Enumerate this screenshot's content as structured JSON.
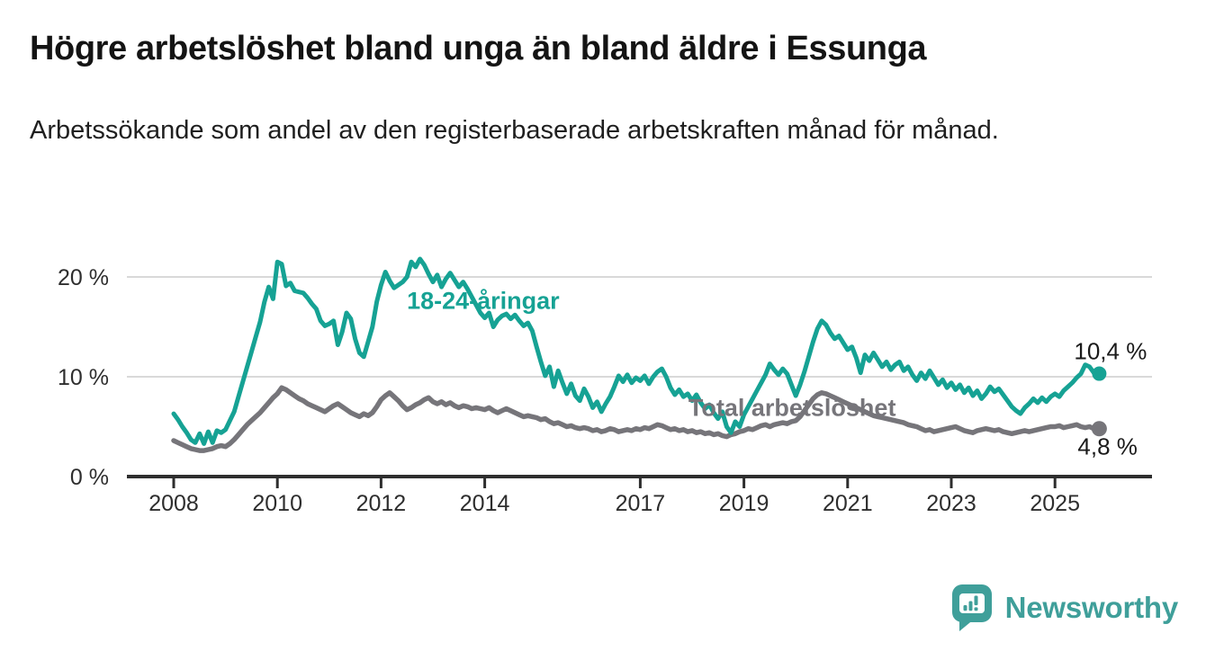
{
  "title": "Högre arbetslöshet bland unga än bland äldre i Essunga",
  "subtitle": "Arbetssökande som andel av den registerbaserade arbetskraften månad för månad.",
  "branding": {
    "logo_text": "Newsworthy",
    "logo_icon": "bar-chart-speech-bubble"
  },
  "colors": {
    "young": "#16a294",
    "total": "#76757a",
    "grid": "#d9d9d9",
    "axis": "#2e2e2e",
    "tick_text": "#2e2e2e",
    "end_label_text": "#1a1a1a",
    "brand": "#3f9f9a",
    "background": "#ffffff"
  },
  "chart_data": {
    "type": "line",
    "unit": "%",
    "x_start": {
      "year": 2008,
      "month": 1
    },
    "x_end": {
      "year": 2025,
      "month": 10
    },
    "points_per_year": 12,
    "ylim": [
      0,
      22.5
    ],
    "grid": true,
    "y_ticks": [
      {
        "label": "20 %",
        "value": 20
      },
      {
        "label": "10 %",
        "value": 10
      },
      {
        "label": "0 %",
        "value": 0
      }
    ],
    "x_ticks": [
      {
        "label": "2008",
        "year": 2008
      },
      {
        "label": "2010",
        "year": 2010
      },
      {
        "label": "2012",
        "year": 2012
      },
      {
        "label": "2014",
        "year": 2014
      },
      {
        "label": "2017",
        "year": 2017
      },
      {
        "label": "2019",
        "year": 2019
      },
      {
        "label": "2021",
        "year": 2021
      },
      {
        "label": "2023",
        "year": 2023
      },
      {
        "label": "2025",
        "year": 2025
      }
    ],
    "series": [
      {
        "name": "18-24-åringar",
        "color_key": "young",
        "end_label": "10,4 %",
        "end_label_position": "above",
        "end_value": 10.4,
        "values": [
          6.3,
          5.7,
          5.0,
          4.4,
          3.7,
          3.4,
          4.3,
          3.3,
          4.5,
          3.4,
          4.6,
          4.4,
          4.7,
          5.6,
          6.5,
          8.0,
          9.5,
          11.0,
          12.5,
          14.0,
          15.5,
          17.5,
          19.0,
          17.8,
          21.5,
          21.3,
          19.1,
          19.4,
          18.6,
          18.5,
          18.4,
          17.9,
          17.3,
          16.8,
          15.6,
          15.1,
          15.3,
          15.6,
          13.2,
          14.5,
          16.4,
          15.8,
          13.8,
          12.4,
          12.0,
          13.5,
          15.0,
          17.5,
          19.2,
          20.5,
          19.6,
          18.9,
          19.2,
          19.5,
          20.0,
          21.5,
          21.0,
          21.8,
          21.2,
          20.3,
          19.5,
          20.2,
          19.0,
          19.8,
          20.4,
          19.7,
          19.0,
          19.5,
          18.8,
          18.0,
          17.2,
          16.4,
          15.9,
          16.4,
          15.0,
          15.7,
          16.1,
          16.3,
          15.8,
          16.2,
          15.6,
          15.1,
          15.4,
          14.6,
          13.0,
          11.5,
          10.1,
          11.0,
          9.0,
          10.6,
          9.4,
          8.3,
          9.3,
          8.1,
          7.6,
          8.8,
          8.0,
          6.9,
          7.5,
          6.5,
          7.3,
          8.0,
          9.0,
          10.1,
          9.5,
          10.2,
          9.4,
          9.9,
          9.6,
          10.1,
          9.3,
          10.0,
          10.5,
          10.8,
          10.0,
          8.9,
          8.2,
          8.7,
          8.0,
          8.3,
          7.6,
          8.2,
          7.4,
          6.8,
          7.2,
          6.4,
          5.8,
          6.5,
          5.0,
          4.4,
          5.5,
          5.0,
          6.2,
          7.0,
          7.8,
          8.6,
          9.4,
          10.2,
          11.3,
          10.7,
          10.2,
          10.8,
          10.3,
          9.2,
          8.1,
          9.2,
          10.5,
          12.0,
          13.5,
          14.8,
          15.6,
          15.2,
          14.4,
          13.8,
          14.1,
          13.4,
          12.7,
          13.0,
          11.9,
          10.4,
          12.2,
          11.6,
          12.4,
          11.7,
          11.0,
          11.5,
          10.7,
          11.2,
          11.5,
          10.6,
          11.0,
          10.2,
          9.6,
          10.4,
          9.8,
          10.6,
          9.9,
          9.2,
          9.7,
          8.9,
          9.4,
          8.7,
          9.2,
          8.4,
          8.9,
          8.1,
          8.6,
          7.8,
          8.3,
          9.0,
          8.5,
          8.8,
          8.2,
          7.6,
          7.0,
          6.6,
          6.3,
          6.9,
          7.3,
          7.8,
          7.4,
          7.9,
          7.5,
          8.0,
          8.3,
          8.0,
          8.6,
          9.0,
          9.4,
          9.9,
          10.3,
          11.2,
          11.0,
          10.4
        ]
      },
      {
        "name": "Total arbetslöshet",
        "color_key": "total",
        "end_label": "4,8 %",
        "end_label_position": "below",
        "end_value": 4.8,
        "values": [
          3.6,
          3.4,
          3.2,
          3.0,
          2.8,
          2.7,
          2.6,
          2.6,
          2.7,
          2.8,
          3.0,
          3.1,
          3.0,
          3.3,
          3.7,
          4.2,
          4.7,
          5.2,
          5.6,
          6.0,
          6.4,
          6.9,
          7.4,
          7.9,
          8.3,
          8.9,
          8.7,
          8.4,
          8.1,
          7.8,
          7.6,
          7.3,
          7.1,
          6.9,
          6.7,
          6.5,
          6.8,
          7.1,
          7.3,
          7.0,
          6.7,
          6.4,
          6.2,
          6.0,
          6.3,
          6.1,
          6.4,
          7.0,
          7.7,
          8.1,
          8.4,
          8.0,
          7.6,
          7.1,
          6.7,
          6.9,
          7.2,
          7.4,
          7.7,
          7.9,
          7.5,
          7.3,
          7.5,
          7.2,
          7.4,
          7.1,
          6.9,
          7.1,
          7.0,
          6.8,
          6.9,
          6.8,
          6.7,
          6.9,
          6.6,
          6.4,
          6.6,
          6.8,
          6.6,
          6.4,
          6.2,
          6.0,
          6.1,
          6.0,
          5.9,
          5.7,
          5.8,
          5.5,
          5.3,
          5.4,
          5.2,
          5.0,
          5.1,
          4.9,
          4.8,
          4.9,
          4.8,
          4.6,
          4.7,
          4.5,
          4.6,
          4.8,
          4.7,
          4.5,
          4.6,
          4.7,
          4.6,
          4.8,
          4.7,
          4.9,
          4.8,
          5.0,
          5.2,
          5.1,
          4.9,
          4.7,
          4.8,
          4.6,
          4.7,
          4.5,
          4.6,
          4.4,
          4.5,
          4.3,
          4.4,
          4.2,
          4.3,
          4.1,
          4.0,
          4.2,
          4.3,
          4.5,
          4.6,
          4.8,
          4.7,
          4.9,
          5.1,
          5.2,
          5.0,
          5.2,
          5.3,
          5.4,
          5.3,
          5.5,
          5.6,
          6.0,
          6.6,
          7.2,
          7.8,
          8.2,
          8.4,
          8.3,
          8.1,
          7.9,
          7.7,
          7.5,
          7.3,
          7.1,
          6.9,
          6.7,
          6.5,
          6.3,
          6.1,
          6.0,
          5.9,
          5.8,
          5.7,
          5.6,
          5.5,
          5.4,
          5.2,
          5.1,
          5.0,
          4.8,
          4.6,
          4.7,
          4.5,
          4.6,
          4.7,
          4.8,
          4.9,
          5.0,
          4.8,
          4.6,
          4.5,
          4.4,
          4.6,
          4.7,
          4.8,
          4.7,
          4.6,
          4.7,
          4.5,
          4.4,
          4.3,
          4.4,
          4.5,
          4.6,
          4.5,
          4.6,
          4.7,
          4.8,
          4.9,
          5.0,
          5.0,
          5.1,
          4.9,
          5.0,
          5.1,
          5.2,
          5.0,
          4.9,
          5.0,
          4.8
        ]
      }
    ],
    "annotations": [
      {
        "text": "18-24-åringar",
        "color_key": "young",
        "year": 2013.97,
        "value": 17.6
      },
      {
        "text": "Total arbetslöshet",
        "color_key": "total",
        "year": 2019.93,
        "value": 6.9
      }
    ]
  }
}
